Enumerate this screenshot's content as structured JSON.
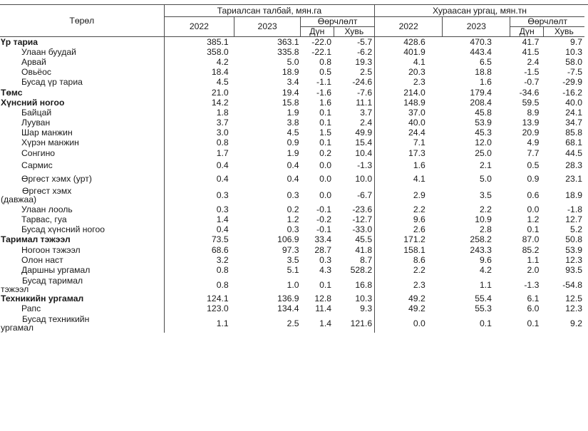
{
  "header": {
    "type_label": "Төрөл",
    "group1": "Тариалсан талбай, мян.га",
    "group2": "Хураасан ургац, мян.тн",
    "year1": "2022",
    "year2": "2023",
    "change": "Өөрчлөлт",
    "amount": "Дүн",
    "percent": "Хувь"
  },
  "rows": [
    {
      "name": "Үр тариа",
      "style": "bold",
      "v": [
        "385.1",
        "363.1",
        "-22.0",
        "-5.7",
        "428.6",
        "470.3",
        "41.7",
        "9.7"
      ]
    },
    {
      "name": "Улаан буудай",
      "style": "ind",
      "v": [
        "358.0",
        "335.8",
        "-22.1",
        "-6.2",
        "401.9",
        "443.4",
        "41.5",
        "10.3"
      ]
    },
    {
      "name": "Арвай",
      "style": "ind",
      "v": [
        "4.2",
        "5.0",
        "0.8",
        "19.3",
        "4.1",
        "6.5",
        "2.4",
        "58.0"
      ]
    },
    {
      "name": "Овьёос",
      "style": "ind",
      "v": [
        "18.4",
        "18.9",
        "0.5",
        "2.5",
        "20.3",
        "18.8",
        "-1.5",
        "-7.5"
      ]
    },
    {
      "name": "Бусад үр тариа",
      "style": "ind",
      "v": [
        "4.5",
        "3.4",
        "-1.1",
        "-24.6",
        "2.3",
        "1.6",
        "-0.7",
        "-29.9"
      ]
    },
    {
      "name": "Төмс",
      "style": "bold",
      "v": [
        "21.0",
        "19.4",
        "-1.6",
        "-7.6",
        "214.0",
        "179.4",
        "-34.6",
        "-16.2"
      ]
    },
    {
      "name": "Хүнсний ногоо",
      "style": "bold",
      "v": [
        "14.2",
        "15.8",
        "1.6",
        "11.1",
        "148.9",
        "208.4",
        "59.5",
        "40.0"
      ]
    },
    {
      "name": "Байцай",
      "style": "ind",
      "v": [
        "1.8",
        "1.9",
        "0.1",
        "3.7",
        "37.0",
        "45.8",
        "8.9",
        "24.1"
      ]
    },
    {
      "name": "Лууван",
      "style": "ind",
      "v": [
        "3.7",
        "3.8",
        "0.1",
        "2.4",
        "40.0",
        "53.9",
        "13.9",
        "34.7"
      ]
    },
    {
      "name": "Шар манжин",
      "style": "ind",
      "v": [
        "3.0",
        "4.5",
        "1.5",
        "49.9",
        "24.4",
        "45.3",
        "20.9",
        "85.8"
      ]
    },
    {
      "name": "Хүрэн манжин",
      "style": "ind",
      "v": [
        "0.8",
        "0.9",
        "0.1",
        "15.4",
        "7.1",
        "12.0",
        "4.9",
        "68.1"
      ]
    },
    {
      "name": "Сонгино",
      "style": "ind",
      "v": [
        "1.7",
        "1.9",
        "0.2",
        "10.4",
        "17.3",
        "25.0",
        "7.7",
        "44.5"
      ]
    },
    {
      "name": "Сармис",
      "style": "ind tall",
      "v": [
        "0.4",
        "0.4",
        "0.0",
        "-1.3",
        "1.6",
        "2.1",
        "0.5",
        "28.3"
      ]
    },
    {
      "name": "Өргөст хэмх (урт)",
      "style": "ind tall",
      "v": [
        "0.4",
        "0.4",
        "0.0",
        "10.0",
        "4.1",
        "5.0",
        "0.9",
        "23.1"
      ]
    },
    {
      "name_l1": "Өргөст хэмх",
      "name_l2": "(давжаа)",
      "style": "wrap",
      "v": [
        "0.3",
        "0.3",
        "0.0",
        "-6.7",
        "2.9",
        "3.5",
        "0.6",
        "18.9"
      ]
    },
    {
      "name": "Улаан лооль",
      "style": "ind",
      "v": [
        "0.3",
        "0.2",
        "-0.1",
        "-23.6",
        "2.2",
        "2.2",
        "0.0",
        "-1.8"
      ]
    },
    {
      "name": "Тарвас, гуа",
      "style": "ind",
      "v": [
        "1.4",
        "1.2",
        "-0.2",
        "-12.7",
        "9.6",
        "10.9",
        "1.2",
        "12.7"
      ]
    },
    {
      "name": "Бусад хүнсний ногоо",
      "style": "ind",
      "v": [
        "0.4",
        "0.3",
        "-0.1",
        "-33.0",
        "2.6",
        "2.8",
        "0.1",
        "5.2"
      ]
    },
    {
      "name": "Тарималтэжээл",
      "display": "Таримал тэжээл",
      "style": "bold",
      "v": [
        "73.5",
        "106.9",
        "33.4",
        "45.5",
        "171.2",
        "258.2",
        "87.0",
        "50.8"
      ]
    },
    {
      "name": "Ногоон тэжээл",
      "style": "ind",
      "v": [
        "68.6",
        "97.3",
        "28.7",
        "41.8",
        "158.1",
        "243.3",
        "85.2",
        "53.9"
      ]
    },
    {
      "name": "Олон наст",
      "style": "ind",
      "v": [
        "3.2",
        "3.5",
        "0.3",
        "8.7",
        "8.6",
        "9.6",
        "1.1",
        "12.3"
      ]
    },
    {
      "name": "Даршны ургамал",
      "style": "ind",
      "v": [
        "0.8",
        "5.1",
        "4.3",
        "528.2",
        "2.2",
        "4.2",
        "2.0",
        "93.5"
      ]
    },
    {
      "name_l1": "Бусад таримал",
      "name_l2": "тэжээл",
      "style": "wrap",
      "v": [
        "0.8",
        "1.0",
        "0.1",
        "16.8",
        "2.3",
        "1.1",
        "-1.3",
        "-54.8"
      ]
    },
    {
      "name": "Техникийн ургамал",
      "style": "bold",
      "v": [
        "124.1",
        "136.9",
        "12.8",
        "10.3",
        "49.2",
        "55.4",
        "6.1",
        "12.5"
      ]
    },
    {
      "name": "Рапс",
      "style": "ind",
      "v": [
        "123.0",
        "134.4",
        "11.4",
        "9.3",
        "49.2",
        "55.3",
        "6.0",
        "12.3"
      ]
    },
    {
      "name_l1": "Бусад техникийн",
      "name_l2": "ургамал",
      "style": "wrap",
      "v": [
        "1.1",
        "2.5",
        "1.4",
        "121.6",
        "0.0",
        "0.1",
        "0.1",
        "9.2"
      ]
    }
  ]
}
